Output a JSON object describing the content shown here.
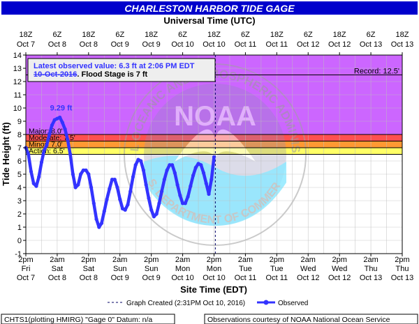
{
  "chart_data": {
    "type": "line",
    "title": "CHARLESTON HARBOR TIDE GAGE",
    "top_axis_title": "Universal Time (UTC)",
    "xlabel": "Site Time (EDT)",
    "ylabel": "Tide Height (ft)",
    "ylim": [
      -1,
      14
    ],
    "y_ticks": [
      -1,
      0,
      1,
      2,
      3,
      4,
      5,
      6,
      7,
      8,
      9,
      10,
      11,
      12,
      13,
      14
    ],
    "top_ticks": [
      {
        "l1": "18Z",
        "l2": "Oct 7"
      },
      {
        "l1": "6Z",
        "l2": "Oct 8"
      },
      {
        "l1": "18Z",
        "l2": "Oct 8"
      },
      {
        "l1": "6Z",
        "l2": "Oct 9"
      },
      {
        "l1": "18Z",
        "l2": "Oct 9"
      },
      {
        "l1": "6Z",
        "l2": "Oct 10"
      },
      {
        "l1": "18Z",
        "l2": "Oct 10"
      },
      {
        "l1": "6Z",
        "l2": "Oct 11"
      },
      {
        "l1": "18Z",
        "l2": "Oct 11"
      },
      {
        "l1": "6Z",
        "l2": "Oct 12"
      },
      {
        "l1": "18Z",
        "l2": "Oct 12"
      },
      {
        "l1": "6Z",
        "l2": "Oct 13"
      },
      {
        "l1": "18Z",
        "l2": "Oct 13"
      }
    ],
    "bottom_ticks": [
      {
        "l1": "2pm",
        "l2": "Fri",
        "l3": "Oct 7"
      },
      {
        "l1": "2am",
        "l2": "Sat",
        "l3": "Oct 8"
      },
      {
        "l1": "2pm",
        "l2": "Sat",
        "l3": "Oct 8"
      },
      {
        "l1": "2am",
        "l2": "Sun",
        "l3": "Oct 9"
      },
      {
        "l1": "2pm",
        "l2": "Sun",
        "l3": "Oct 9"
      },
      {
        "l1": "2am",
        "l2": "Mon",
        "l3": "Oct 10"
      },
      {
        "l1": "2pm",
        "l2": "Mon",
        "l3": "Oct 10"
      },
      {
        "l1": "2am",
        "l2": "Tue",
        "l3": "Oct 11"
      },
      {
        "l1": "2pm",
        "l2": "Tue",
        "l3": "Oct 11"
      },
      {
        "l1": "2am",
        "l2": "Wed",
        "l3": "Oct 12"
      },
      {
        "l1": "2pm",
        "l2": "Wed",
        "l3": "Oct 12"
      },
      {
        "l1": "2am",
        "l2": "Thu",
        "l3": "Oct 13"
      },
      {
        "l1": "2pm",
        "l2": "Thu",
        "l3": "Oct 13"
      }
    ],
    "flood_bands": [
      {
        "label": "Action: 6.5'",
        "from": 6.5,
        "to": 7.0,
        "color": "#ffff66"
      },
      {
        "label": "Minor: 7.0'",
        "from": 7.0,
        "to": 7.5,
        "color": "#ff9933"
      },
      {
        "label": "Moderate: 7.5'",
        "from": 7.5,
        "to": 8.0,
        "color": "#ff5050"
      },
      {
        "label": "Major: 8.0'",
        "from": 8.0,
        "to": 14.0,
        "color": "#cc66ff"
      }
    ],
    "record": {
      "label": "Record: 12.5'",
      "value": 12.5
    },
    "latest_box": {
      "line1": "Latest observed value: 6.3 ft at 2:06 PM EDT",
      "line2_date": "10-Oct-2016",
      "line2_rest": ". Flood Stage is 7 ft"
    },
    "peak_label": {
      "text": "9.29 ft",
      "hours": 13.5,
      "value": 9.29
    },
    "graph_created_hours": 72.5,
    "series": [
      {
        "name": "Observed",
        "color": "#3333ff",
        "hours": [
          0,
          1,
          2,
          3,
          4,
          5,
          6,
          7,
          8,
          9,
          10,
          11,
          12,
          13,
          14,
          15,
          16,
          17,
          18,
          19,
          20,
          21,
          22,
          23,
          24,
          25,
          26,
          27,
          28,
          29,
          30,
          31,
          32,
          33,
          34,
          35,
          36,
          37,
          38,
          39,
          40,
          41,
          42,
          43,
          44,
          45,
          46,
          47,
          48,
          49,
          50,
          51,
          52,
          53,
          54,
          55,
          56,
          57,
          58,
          59,
          60,
          61,
          62,
          63,
          64,
          65,
          66,
          67,
          68,
          69,
          70,
          71,
          72
        ],
        "values": [
          7.0,
          6.5,
          5.2,
          4.3,
          4.1,
          4.8,
          5.9,
          6.8,
          7.2,
          8.0,
          8.7,
          9.1,
          9.2,
          9.29,
          8.9,
          8.4,
          7.6,
          6.5,
          5.0,
          4.0,
          4.2,
          5.0,
          5.3,
          5.3,
          5.0,
          4.0,
          2.8,
          1.6,
          1.0,
          1.3,
          2.2,
          3.1,
          3.9,
          4.6,
          4.6,
          4.0,
          3.1,
          2.4,
          2.3,
          2.7,
          3.7,
          4.8,
          5.7,
          6.1,
          6.0,
          5.3,
          4.2,
          3.2,
          2.3,
          1.8,
          2.0,
          2.8,
          3.7,
          4.6,
          5.3,
          5.7,
          5.7,
          5.1,
          4.2,
          3.4,
          2.8,
          2.8,
          3.3,
          4.1,
          4.9,
          5.5,
          5.8,
          5.7,
          5.1,
          4.3,
          3.5,
          4.6,
          6.3
        ]
      }
    ]
  },
  "legend": {
    "graph_created": "Graph Created (2:31PM Oct 10, 2016)",
    "observed": "Observed"
  },
  "footer": {
    "left": "CHTS1(plotting HMIRG) \"Gage 0\" Datum: n/a",
    "right": "Observations courtesy of NOAA National Ocean Service"
  },
  "watermark": {
    "center": "NOAA",
    "ring": "NATIONAL OCEANIC AND ATMOSPHERIC ADMINISTRATION",
    "bottom_ring": "U.S. DEPARTMENT OF COMMERCE"
  },
  "colors": {
    "title_bar": "#0000cc",
    "title_text": "#ffffff",
    "background": "#ffffff",
    "grid": "#c8c8c8",
    "observed": "#3333ff"
  }
}
